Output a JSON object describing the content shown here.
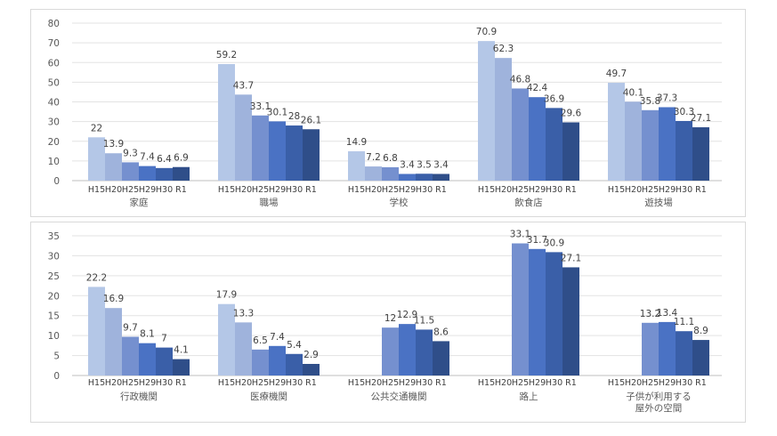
{
  "series_labels": [
    "H15",
    "H20",
    "H25",
    "H29",
    "H30",
    "R1"
  ],
  "colors": [
    "#b4c7e7",
    "#9fb3dc",
    "#7590cf",
    "#4a72c4",
    "#3a5fa8",
    "#2f4e89"
  ],
  "chart_data": [
    {
      "type": "bar",
      "ylim": [
        0,
        80
      ],
      "yticks": [
        0,
        10,
        20,
        30,
        40,
        50,
        60,
        70,
        80
      ],
      "grid": true,
      "categories": [
        "家庭",
        "職場",
        "学校",
        "飲食店",
        "遊技場"
      ],
      "series": [
        {
          "values": [
            22,
            59.2,
            14.9,
            70.9,
            49.7
          ]
        },
        {
          "values": [
            13.9,
            43.7,
            7.2,
            62.3,
            40.1
          ]
        },
        {
          "values": [
            9.3,
            33.1,
            6.8,
            46.8,
            35.8
          ]
        },
        {
          "values": [
            7.4,
            30.1,
            3.4,
            42.4,
            37.3
          ]
        },
        {
          "values": [
            6.4,
            28,
            3.5,
            36.9,
            30.3
          ]
        },
        {
          "values": [
            6.9,
            26.1,
            3.4,
            29.6,
            27.1
          ]
        }
      ]
    },
    {
      "type": "bar",
      "ylim": [
        0,
        35
      ],
      "yticks": [
        0,
        5,
        10,
        15,
        20,
        25,
        30,
        35
      ],
      "grid": true,
      "categories": [
        "行政機関",
        "医療機関",
        "公共交通機関",
        "路上",
        "子供が利用する\n屋外の空間"
      ],
      "series": [
        {
          "values": [
            22.2,
            17.9,
            null,
            null,
            null
          ]
        },
        {
          "values": [
            16.9,
            13.3,
            null,
            null,
            null
          ]
        },
        {
          "values": [
            9.7,
            6.5,
            12,
            33.1,
            13.2
          ]
        },
        {
          "values": [
            8.1,
            7.4,
            12.9,
            31.7,
            13.4
          ]
        },
        {
          "values": [
            7,
            5.4,
            11.5,
            30.9,
            11.1
          ]
        },
        {
          "values": [
            4.1,
            2.9,
            8.6,
            27.1,
            8.9
          ]
        }
      ]
    }
  ]
}
